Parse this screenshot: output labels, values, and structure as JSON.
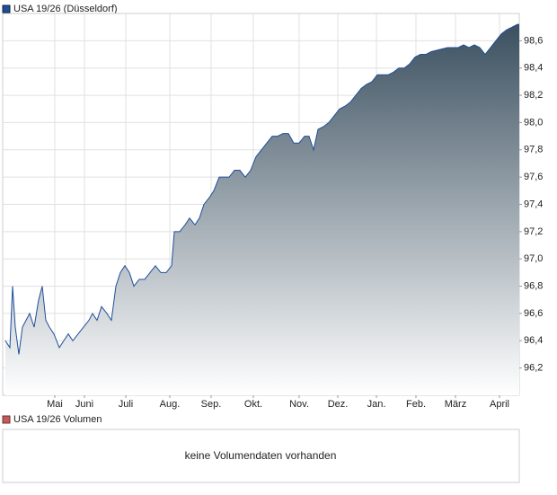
{
  "chart_data": {
    "type": "area",
    "x": [
      3,
      8,
      11,
      14,
      18,
      22,
      26,
      30,
      35,
      40,
      44,
      48,
      52,
      57,
      63,
      68,
      73,
      78,
      84,
      90,
      96,
      100,
      105,
      110,
      116,
      121,
      126,
      131,
      136,
      141,
      146,
      152,
      158,
      164,
      170,
      176,
      182,
      188,
      191,
      197,
      203,
      208,
      214,
      219,
      224,
      230,
      235,
      241,
      246,
      252,
      258,
      264,
      270,
      276,
      282,
      288,
      294,
      300,
      306,
      312,
      318,
      324,
      330,
      336,
      341,
      346,
      351,
      357,
      363,
      369,
      375,
      381,
      387,
      393,
      399,
      405,
      411,
      417,
      423,
      429,
      435,
      441,
      447,
      453,
      459,
      465,
      471,
      477,
      483,
      489,
      495,
      501,
      507,
      513,
      519,
      525,
      531,
      537,
      543,
      549,
      555,
      561,
      567,
      573,
      575
    ],
    "series": [
      {
        "name": "USA 19/26 (Düsseldorf)",
        "color": "#1f4e9c",
        "values": [
          96.4,
          96.35,
          96.8,
          96.5,
          96.3,
          96.5,
          96.55,
          96.6,
          96.5,
          96.7,
          96.8,
          96.55,
          96.5,
          96.45,
          96.35,
          96.4,
          96.45,
          96.4,
          96.45,
          96.5,
          96.55,
          96.6,
          96.55,
          96.65,
          96.6,
          96.55,
          96.8,
          96.9,
          96.95,
          96.9,
          96.8,
          96.85,
          96.85,
          96.9,
          96.95,
          96.9,
          96.9,
          96.95,
          97.2,
          97.2,
          97.25,
          97.3,
          97.25,
          97.3,
          97.4,
          97.45,
          97.5,
          97.6,
          97.6,
          97.6,
          97.65,
          97.65,
          97.6,
          97.65,
          97.75,
          97.8,
          97.85,
          97.9,
          97.9,
          97.92,
          97.92,
          97.85,
          97.85,
          97.9,
          97.9,
          97.8,
          97.95,
          97.97,
          98.0,
          98.05,
          98.1,
          98.12,
          98.15,
          98.2,
          98.25,
          98.28,
          98.3,
          98.35,
          98.35,
          98.35,
          98.37,
          98.4,
          98.4,
          98.43,
          98.48,
          98.5,
          98.5,
          98.52,
          98.53,
          98.54,
          98.55,
          98.55,
          98.55,
          98.57,
          98.55,
          98.57,
          98.55,
          98.5,
          98.55,
          98.6,
          98.65,
          98.68,
          98.7,
          98.72,
          98.72
        ]
      }
    ],
    "xlim": [
      0,
      575
    ],
    "xticks": [
      {
        "value": 58,
        "label": "Mai"
      },
      {
        "value": 91,
        "label": "Juni"
      },
      {
        "value": 137,
        "label": "Juli"
      },
      {
        "value": 186,
        "label": "Aug."
      },
      {
        "value": 232,
        "label": "Sep."
      },
      {
        "value": 279,
        "label": "Okt."
      },
      {
        "value": 330,
        "label": "Nov."
      },
      {
        "value": 373,
        "label": "Dez."
      },
      {
        "value": 416,
        "label": "Jan."
      },
      {
        "value": 460,
        "label": "Feb."
      },
      {
        "value": 504,
        "label": "März"
      },
      {
        "value": 553,
        "label": "April"
      }
    ],
    "ylim": [
      96.0,
      98.8
    ],
    "yticks": [
      {
        "value": 96.2,
        "label": "96,2"
      },
      {
        "value": 96.4,
        "label": "96,4"
      },
      {
        "value": 96.6,
        "label": "96,6"
      },
      {
        "value": 96.8,
        "label": "96,8"
      },
      {
        "value": 97.0,
        "label": "97,0"
      },
      {
        "value": 97.2,
        "label": "97,2"
      },
      {
        "value": 97.4,
        "label": "97,4"
      },
      {
        "value": 97.6,
        "label": "97,6"
      },
      {
        "value": 97.8,
        "label": "97,8"
      },
      {
        "value": 98.0,
        "label": "98,0"
      },
      {
        "value": 98.2,
        "label": "98,2"
      },
      {
        "value": 98.4,
        "label": "98,4"
      },
      {
        "value": 98.6,
        "label": "98,6"
      }
    ],
    "grid": true
  },
  "volume_panel": {
    "legend": "USA 19/26 Volumen",
    "message": "keine Volumendaten vorhanden"
  }
}
